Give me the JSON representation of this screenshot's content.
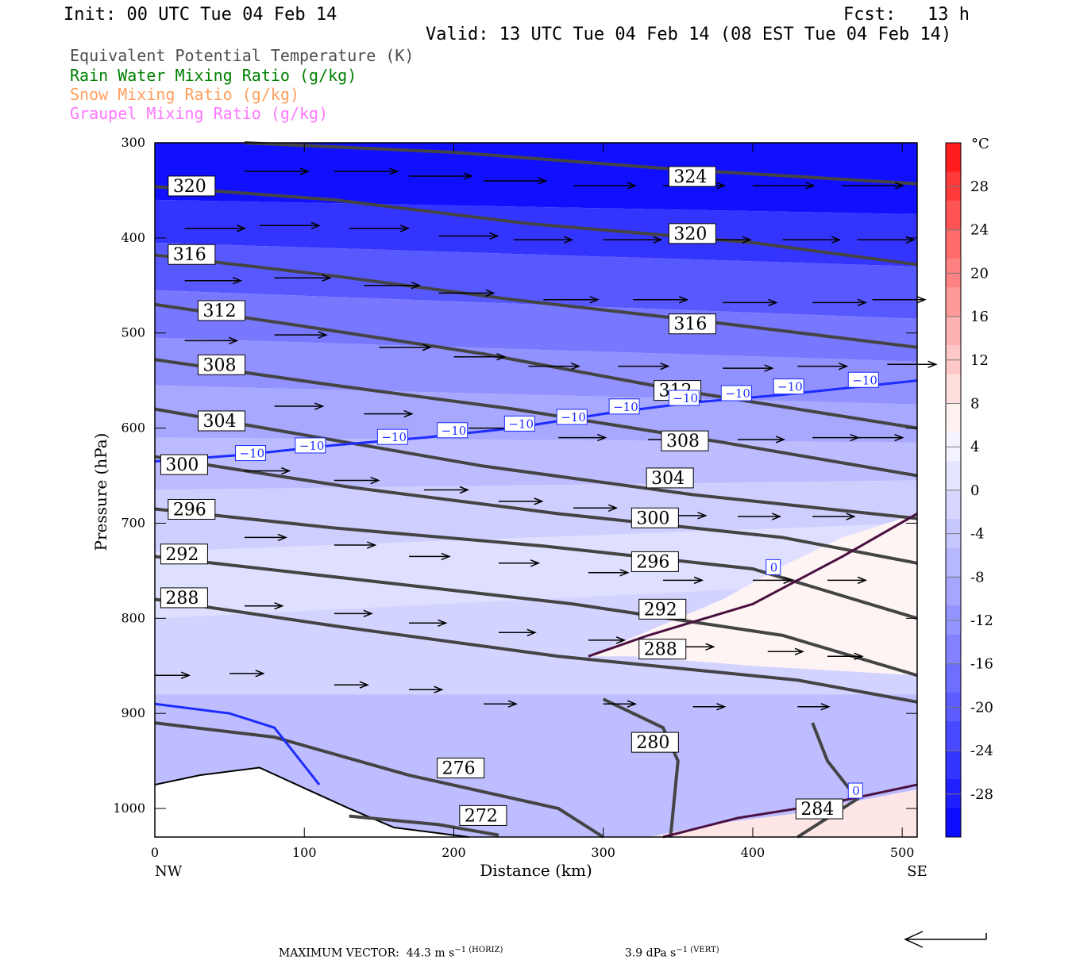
{
  "header": {
    "init": "Init: 00 UTC Tue 04 Feb 14",
    "fcst": "Fcst:   13 h",
    "valid": "Valid: 13 UTC Tue 04 Feb 14 (08 EST Tue 04 Feb 14)"
  },
  "legend": {
    "items": [
      {
        "label": "Equivalent Potential Temperature (K)",
        "color": "#4d4d4d"
      },
      {
        "label": "Rain Water Mixing Ratio (g/kg)",
        "color": "#008000"
      },
      {
        "label": "Snow Mixing Ratio (g/kg)",
        "color": "#ff9f5f"
      },
      {
        "label": "Graupel Mixing Ratio (g/kg)",
        "color": "#ff77ff"
      }
    ]
  },
  "chart_data": {
    "type": "contour-cross-section",
    "xlabel": "Distance (km)",
    "ylabel": "Pressure (hPa)",
    "xlim": [
      0,
      510
    ],
    "ylim": [
      300,
      1030
    ],
    "x_ticks": [
      0,
      100,
      200,
      300,
      400,
      500
    ],
    "y_ticks": [
      300,
      400,
      500,
      600,
      700,
      800,
      900,
      1000
    ],
    "x_end_labels": {
      "left": "NW",
      "right": "SE"
    },
    "colorbar": {
      "unit": "°C",
      "ticks": [
        28,
        24,
        20,
        16,
        12,
        8,
        4,
        0,
        -4,
        -8,
        -12,
        -16,
        -20,
        -24,
        -28
      ],
      "colors_top_to_bottom": [
        "#ff1c1c",
        "#ff3a3a",
        "#ff5454",
        "#ff6c6c",
        "#ff8282",
        "#ff9a9a",
        "#ffb2b2",
        "#ffc8c8",
        "#ffdede",
        "#fff0f0",
        "#f3f3ff",
        "#e5e5ff",
        "#d6d6ff",
        "#c7c7ff",
        "#b7b7ff",
        "#a6a6ff",
        "#9494ff",
        "#8282ff",
        "#6f6fff",
        "#5c5cff",
        "#4848ff",
        "#3434ff",
        "#2020ff",
        "#0c0cff"
      ]
    },
    "theta_e_labels": [
      {
        "x": 10,
        "p": 350,
        "v": "320"
      },
      {
        "x": 10,
        "p": 422,
        "v": "316"
      },
      {
        "x": 30,
        "p": 481,
        "v": "312"
      },
      {
        "x": 30,
        "p": 538,
        "v": "308"
      },
      {
        "x": 30,
        "p": 597,
        "v": "304"
      },
      {
        "x": 5,
        "p": 643,
        "v": "300"
      },
      {
        "x": 10,
        "p": 690,
        "v": "296"
      },
      {
        "x": 5,
        "p": 737,
        "v": "292"
      },
      {
        "x": 5,
        "p": 783,
        "v": "288"
      },
      {
        "x": 345,
        "p": 340,
        "v": "324"
      },
      {
        "x": 345,
        "p": 400,
        "v": "320"
      },
      {
        "x": 345,
        "p": 495,
        "v": "316"
      },
      {
        "x": 335,
        "p": 565,
        "v": "312"
      },
      {
        "x": 340,
        "p": 618,
        "v": "308"
      },
      {
        "x": 330,
        "p": 657,
        "v": "304"
      },
      {
        "x": 320,
        "p": 699,
        "v": "300"
      },
      {
        "x": 320,
        "p": 745,
        "v": "296"
      },
      {
        "x": 325,
        "p": 795,
        "v": "292"
      },
      {
        "x": 325,
        "p": 837,
        "v": "288"
      },
      {
        "x": 320,
        "p": 935,
        "v": "280"
      },
      {
        "x": 190,
        "p": 962,
        "v": "276"
      },
      {
        "x": 205,
        "p": 1012,
        "v": "272"
      },
      {
        "x": 430,
        "p": 1005,
        "v": "284"
      }
    ],
    "temp_labels": [
      {
        "x": 55,
        "p": 630,
        "v": "−10"
      },
      {
        "x": 95,
        "p": 622,
        "v": "−10"
      },
      {
        "x": 150,
        "p": 613,
        "v": "−10"
      },
      {
        "x": 190,
        "p": 606,
        "v": "−10"
      },
      {
        "x": 235,
        "p": 599,
        "v": "−10"
      },
      {
        "x": 270,
        "p": 592,
        "v": "−10"
      },
      {
        "x": 305,
        "p": 581,
        "v": "−10"
      },
      {
        "x": 345,
        "p": 572,
        "v": "−10"
      },
      {
        "x": 380,
        "p": 567,
        "v": "−10"
      },
      {
        "x": 415,
        "p": 560,
        "v": "−10"
      },
      {
        "x": 465,
        "p": 553,
        "v": "−10"
      },
      {
        "x": 410,
        "p": 750,
        "v": "0"
      },
      {
        "x": 465,
        "p": 985,
        "v": "0"
      }
    ]
  },
  "bottom": {
    "max_vector": "MAXIMUM VECTOR:  44.3 m s",
    "horiz": "−1 (HORIZ)",
    "vert": "3.9 dPa s",
    "vert_suffix": "−1 (VERT)"
  }
}
